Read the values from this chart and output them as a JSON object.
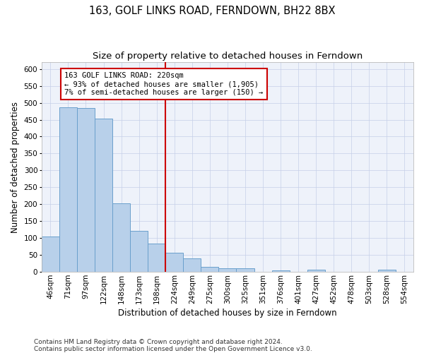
{
  "title": "163, GOLF LINKS ROAD, FERNDOWN, BH22 8BX",
  "subtitle": "Size of property relative to detached houses in Ferndown",
  "xlabel": "Distribution of detached houses by size in Ferndown",
  "ylabel": "Number of detached properties",
  "bar_color": "#b8d0ea",
  "bar_edge_color": "#6aa0cc",
  "background_color": "#eef2fa",
  "grid_color": "#c5cfe8",
  "vline_color": "#cc0000",
  "annotation_text": "163 GOLF LINKS ROAD: 220sqm\n← 93% of detached houses are smaller (1,905)\n7% of semi-detached houses are larger (150) →",
  "annotation_box_color": "#cc0000",
  "categories": [
    "46sqm",
    "71sqm",
    "97sqm",
    "122sqm",
    "148sqm",
    "173sqm",
    "198sqm",
    "224sqm",
    "249sqm",
    "275sqm",
    "300sqm",
    "325sqm",
    "351sqm",
    "376sqm",
    "401sqm",
    "427sqm",
    "452sqm",
    "478sqm",
    "503sqm",
    "528sqm",
    "554sqm"
  ],
  "values": [
    104,
    486,
    484,
    454,
    202,
    121,
    83,
    57,
    40,
    15,
    10,
    10,
    0,
    5,
    0,
    7,
    0,
    0,
    0,
    7,
    0
  ],
  "vline_index": 7,
  "ylim": [
    0,
    620
  ],
  "yticks": [
    0,
    50,
    100,
    150,
    200,
    250,
    300,
    350,
    400,
    450,
    500,
    550,
    600
  ],
  "footer": "Contains HM Land Registry data © Crown copyright and database right 2024.\nContains public sector information licensed under the Open Government Licence v3.0.",
  "footer_fontsize": 6.5,
  "title_fontsize": 10.5,
  "subtitle_fontsize": 9.5,
  "xlabel_fontsize": 8.5,
  "ylabel_fontsize": 8.5,
  "tick_fontsize": 7.5,
  "annot_fontsize": 7.5
}
